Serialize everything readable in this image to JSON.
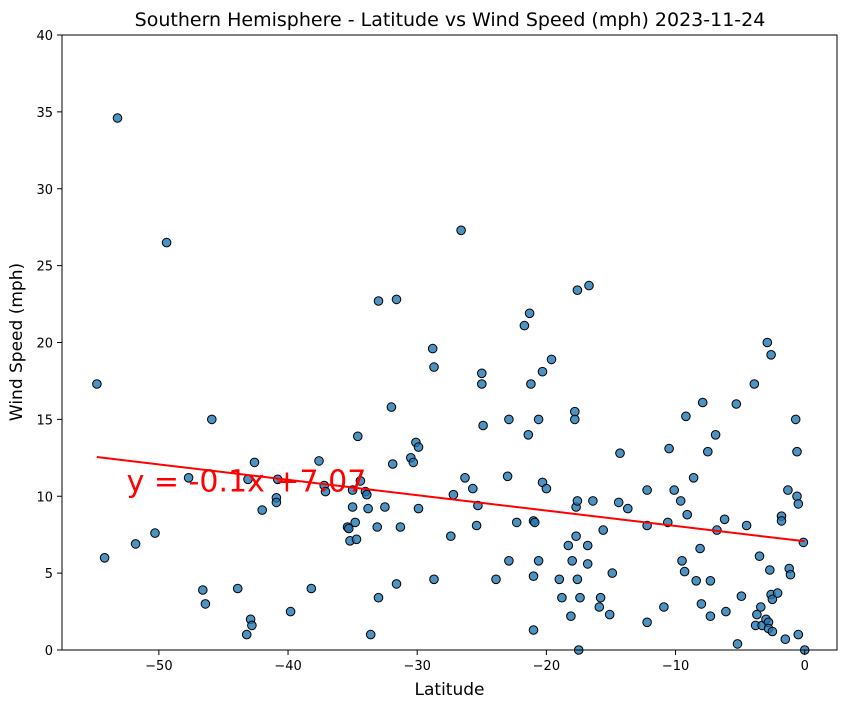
{
  "chart_data": {
    "type": "scatter",
    "title": "Southern Hemisphere - Latitude vs Wind Speed (mph) 2023-11-24",
    "xlabel": "Latitude",
    "ylabel": "Wind Speed (mph)",
    "xlim": [
      -57.5,
      2.5
    ],
    "ylim": [
      0,
      40
    ],
    "xticks": [
      -50,
      -40,
      -30,
      -20,
      -10,
      0
    ],
    "yticks": [
      0,
      5,
      10,
      15,
      20,
      25,
      30,
      35,
      40
    ],
    "grid": false,
    "regression": {
      "slope": -0.1,
      "intercept": 7.07,
      "x_start": -54.8,
      "x_end": 0,
      "equation": "y = -0.1x +7.07"
    },
    "colors": {
      "point_fill": "#1f77b4",
      "point_edge": "#000000",
      "line": "#ff0000"
    },
    "points": [
      [
        -54.8,
        17.3
      ],
      [
        -54.2,
        6.0
      ],
      [
        -53.2,
        34.6
      ],
      [
        -51.8,
        6.9
      ],
      [
        -50.3,
        7.6
      ],
      [
        -49.4,
        26.5
      ],
      [
        -47.7,
        11.2
      ],
      [
        -46.6,
        3.9
      ],
      [
        -46.4,
        3.0
      ],
      [
        -45.9,
        15.0
      ],
      [
        -43.9,
        4.0
      ],
      [
        -43.2,
        1.0
      ],
      [
        -43.1,
        11.1
      ],
      [
        -42.9,
        2.0
      ],
      [
        -42.8,
        1.6
      ],
      [
        -42.6,
        12.2
      ],
      [
        -42.0,
        9.1
      ],
      [
        -40.9,
        9.9
      ],
      [
        -40.9,
        9.6
      ],
      [
        -40.8,
        11.1
      ],
      [
        -39.8,
        2.5
      ],
      [
        -38.2,
        4.0
      ],
      [
        -37.6,
        12.3
      ],
      [
        -37.2,
        10.7
      ],
      [
        -37.1,
        10.3
      ],
      [
        -35.4,
        8.0
      ],
      [
        -35.3,
        7.9
      ],
      [
        -35.2,
        7.1
      ],
      [
        -35.0,
        9.3
      ],
      [
        -35.0,
        10.4
      ],
      [
        -34.8,
        8.3
      ],
      [
        -34.7,
        7.2
      ],
      [
        -34.6,
        13.9
      ],
      [
        -34.4,
        11.0
      ],
      [
        -34.0,
        10.3
      ],
      [
        -33.9,
        10.1
      ],
      [
        -33.8,
        9.2
      ],
      [
        -33.6,
        1.0
      ],
      [
        -33.1,
        8.0
      ],
      [
        -33.0,
        3.4
      ],
      [
        -33.0,
        22.7
      ],
      [
        -32.5,
        9.3
      ],
      [
        -32.0,
        15.8
      ],
      [
        -31.9,
        12.1
      ],
      [
        -31.6,
        4.3
      ],
      [
        -31.6,
        22.8
      ],
      [
        -31.3,
        8.0
      ],
      [
        -30.5,
        12.5
      ],
      [
        -30.3,
        12.2
      ],
      [
        -30.1,
        13.5
      ],
      [
        -29.9,
        13.2
      ],
      [
        -29.9,
        9.2
      ],
      [
        -28.8,
        19.6
      ],
      [
        -28.7,
        18.4
      ],
      [
        -28.7,
        4.6
      ],
      [
        -27.4,
        7.4
      ],
      [
        -27.2,
        10.1
      ],
      [
        -26.6,
        27.3
      ],
      [
        -26.3,
        11.2
      ],
      [
        -25.7,
        10.5
      ],
      [
        -25.4,
        8.1
      ],
      [
        -25.3,
        9.4
      ],
      [
        -25.0,
        18.0
      ],
      [
        -25.0,
        17.3
      ],
      [
        -24.9,
        14.6
      ],
      [
        -23.9,
        4.6
      ],
      [
        -23.0,
        11.3
      ],
      [
        -22.9,
        15.0
      ],
      [
        -22.9,
        5.8
      ],
      [
        -22.3,
        8.3
      ],
      [
        -21.7,
        21.1
      ],
      [
        -21.4,
        14.0
      ],
      [
        -21.3,
        21.9
      ],
      [
        -21.2,
        17.3
      ],
      [
        -21.0,
        4.8
      ],
      [
        -21.0,
        8.4
      ],
      [
        -20.9,
        8.3
      ],
      [
        -21.0,
        1.3
      ],
      [
        -20.6,
        15.0
      ],
      [
        -20.6,
        5.8
      ],
      [
        -20.3,
        18.1
      ],
      [
        -20.3,
        10.9
      ],
      [
        -20.0,
        10.5
      ],
      [
        -19.6,
        18.9
      ],
      [
        -19.0,
        4.6
      ],
      [
        -18.8,
        3.4
      ],
      [
        -18.3,
        6.8
      ],
      [
        -18.1,
        2.2
      ],
      [
        -18.0,
        5.8
      ],
      [
        -17.8,
        15.5
      ],
      [
        -17.8,
        15.0
      ],
      [
        -17.7,
        9.3
      ],
      [
        -17.7,
        7.4
      ],
      [
        -17.6,
        9.7
      ],
      [
        -17.6,
        4.6
      ],
      [
        -17.6,
        23.4
      ],
      [
        -17.5,
        0.0
      ],
      [
        -17.4,
        3.4
      ],
      [
        -16.8,
        6.8
      ],
      [
        -16.8,
        5.6
      ],
      [
        -16.7,
        23.7
      ],
      [
        -16.4,
        9.7
      ],
      [
        -15.9,
        2.8
      ],
      [
        -15.8,
        3.4
      ],
      [
        -15.6,
        7.8
      ],
      [
        -15.1,
        2.3
      ],
      [
        -14.9,
        5.0
      ],
      [
        -14.4,
        9.6
      ],
      [
        -14.3,
        12.8
      ],
      [
        -13.7,
        9.2
      ],
      [
        -12.2,
        10.4
      ],
      [
        -12.2,
        8.1
      ],
      [
        -12.2,
        1.8
      ],
      [
        -10.9,
        2.8
      ],
      [
        -10.6,
        8.3
      ],
      [
        -10.5,
        13.1
      ],
      [
        -10.1,
        10.4
      ],
      [
        -9.6,
        9.7
      ],
      [
        -9.5,
        5.8
      ],
      [
        -9.3,
        5.1
      ],
      [
        -9.2,
        15.2
      ],
      [
        -9.1,
        8.8
      ],
      [
        -8.6,
        11.2
      ],
      [
        -8.4,
        4.5
      ],
      [
        -8.1,
        6.6
      ],
      [
        -8.0,
        3.0
      ],
      [
        -7.9,
        16.1
      ],
      [
        -7.5,
        12.9
      ],
      [
        -7.3,
        2.2
      ],
      [
        -7.3,
        4.5
      ],
      [
        -6.9,
        14.0
      ],
      [
        -6.8,
        7.8
      ],
      [
        -6.2,
        8.5
      ],
      [
        -6.1,
        2.5
      ],
      [
        -5.3,
        16.0
      ],
      [
        -5.2,
        0.4
      ],
      [
        -4.9,
        3.5
      ],
      [
        -4.5,
        8.1
      ],
      [
        -3.9,
        17.3
      ],
      [
        -3.8,
        1.6
      ],
      [
        -3.7,
        2.3
      ],
      [
        -3.5,
        6.1
      ],
      [
        -3.4,
        2.8
      ],
      [
        -3.3,
        1.6
      ],
      [
        -3.0,
        2.0
      ],
      [
        -2.9,
        20.0
      ],
      [
        -2.8,
        1.8
      ],
      [
        -2.8,
        1.4
      ],
      [
        -2.7,
        5.2
      ],
      [
        -2.6,
        19.2
      ],
      [
        -2.6,
        3.6
      ],
      [
        -2.5,
        1.2
      ],
      [
        -2.5,
        3.3
      ],
      [
        -2.1,
        3.7
      ],
      [
        -1.8,
        8.7
      ],
      [
        -1.8,
        8.4
      ],
      [
        -1.5,
        0.7
      ],
      [
        -1.3,
        10.4
      ],
      [
        -1.2,
        5.3
      ],
      [
        -1.1,
        4.9
      ],
      [
        -0.7,
        15.0
      ],
      [
        -0.6,
        12.9
      ],
      [
        -0.6,
        10.0
      ],
      [
        -0.5,
        9.5
      ],
      [
        -0.5,
        1.0
      ],
      [
        -0.1,
        7.0
      ],
      [
        0.0,
        0.0
      ]
    ]
  }
}
